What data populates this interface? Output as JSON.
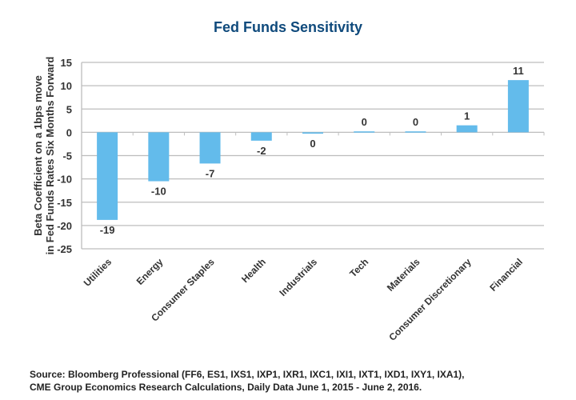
{
  "chart_data": {
    "type": "bar",
    "title": "Fed Funds Sensitivity",
    "xlabel": "",
    "ylabel": [
      "Beta Coefficient on a 1bps move",
      "in Fed Funds Rates Six Months Forward"
    ],
    "categories": [
      "Utilities",
      "Energy",
      "Consumer Staples",
      "Health",
      "Industrials",
      "Tech",
      "Materials",
      "Consumer Discretionary",
      "Financial"
    ],
    "values": [
      -18.8,
      -10.5,
      -6.7,
      -1.8,
      -0.3,
      0.2,
      0.2,
      1.5,
      11.2
    ],
    "data_labels": [
      "-19",
      "-10",
      "-7",
      "-2",
      "0",
      "0",
      "0",
      "1",
      "11"
    ],
    "ylim": [
      -25,
      15
    ],
    "yticks": [
      15,
      10,
      5,
      0,
      -5,
      -10,
      -15,
      -20,
      -25
    ],
    "grid": true,
    "bar_color": "#63bbeb"
  },
  "source": {
    "line1": "Source: Bloomberg Professional (FF6, ES1, IXS1, IXP1, IXR1, IXC1, IXI1, IXT1, IXD1, IXY1, IXA1),",
    "line2": "CME Group Economics Research Calculations, Daily Data June 1, 2015 - June 2, 2016."
  }
}
